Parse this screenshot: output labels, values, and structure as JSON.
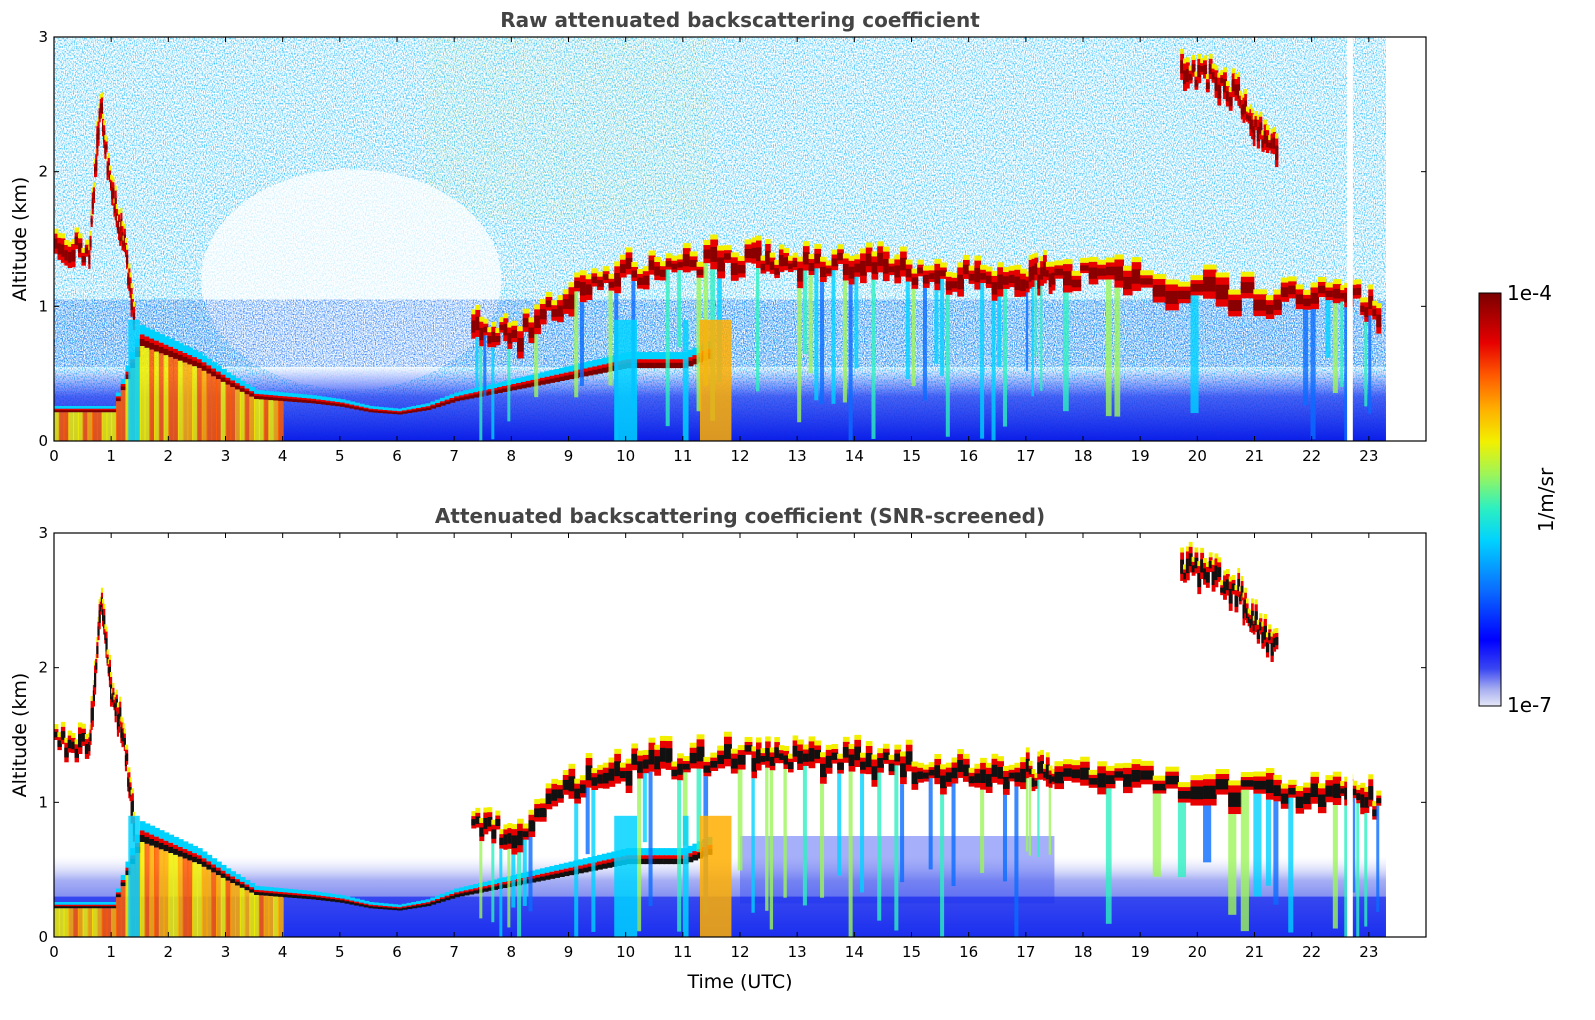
{
  "chart_data": [
    {
      "type": "heatmap",
      "title": "Raw attenuated backscattering coefficient",
      "ylabel": "Altitude (km)",
      "xlabel": "",
      "xlim": [
        0,
        24
      ],
      "ylim": [
        0,
        3
      ],
      "x_ticks": [
        "0",
        "1",
        "2",
        "3",
        "4",
        "5",
        "6",
        "7",
        "8",
        "9",
        "10",
        "11",
        "12",
        "13",
        "14",
        "15",
        "16",
        "17",
        "18",
        "19",
        "20",
        "21",
        "22",
        "23"
      ],
      "y_ticks": [
        "0",
        "1",
        "2",
        "3"
      ],
      "data_end_time": 23.3,
      "gap": [
        22.62,
        22.72
      ],
      "layers": [
        {
          "name": "boundary layer aerosol",
          "x": [
            0,
            0.5,
            1,
            1.5,
            2,
            2.5,
            3,
            3.5,
            4,
            4.5,
            5,
            5.5,
            6,
            6.5,
            7,
            7.5,
            8,
            8.5,
            9,
            9.5,
            10,
            10.5,
            11,
            11.5
          ],
          "y": [
            0.2,
            0.2,
            0.2,
            0.8,
            0.7,
            0.6,
            0.45,
            0.32,
            0.3,
            0.28,
            0.25,
            0.2,
            0.18,
            0.22,
            0.3,
            0.35,
            0.4,
            0.45,
            0.5,
            0.55,
            0.6,
            0.6,
            0.6,
            0.7
          ]
        },
        {
          "name": "low cloud",
          "x": [
            0,
            0.6,
            0.8,
            1.0,
            1.2,
            1.4
          ],
          "y": [
            1.45,
            1.4,
            2.5,
            1.8,
            1.5,
            0.8
          ]
        },
        {
          "name": "mid cloud",
          "x": [
            7.3,
            8,
            9,
            10,
            11,
            12.2,
            13,
            14,
            15,
            16,
            17,
            17.5,
            19,
            21.2,
            22.5,
            23.2
          ],
          "y": [
            0.85,
            0.75,
            1.1,
            1.25,
            1.3,
            1.35,
            1.3,
            1.3,
            1.25,
            1.2,
            1.2,
            1.25,
            1.15,
            1.05,
            1.1,
            0.95
          ]
        },
        {
          "name": "high cloud",
          "x": [
            19.7,
            20.2,
            20.7,
            21.0,
            21.4
          ],
          "y": [
            2.75,
            2.7,
            2.55,
            2.3,
            2.15
          ]
        }
      ]
    },
    {
      "type": "heatmap",
      "title": "Attenuated backscattering coefficient (SNR-screened)",
      "ylabel": "Altitude (km)",
      "xlabel": "Time (UTC)",
      "xlim": [
        0,
        24
      ],
      "ylim": [
        0,
        3
      ],
      "x_ticks": [
        "0",
        "1",
        "2",
        "3",
        "4",
        "5",
        "6",
        "7",
        "8",
        "9",
        "10",
        "11",
        "12",
        "13",
        "14",
        "15",
        "16",
        "17",
        "18",
        "19",
        "20",
        "21",
        "22",
        "23"
      ],
      "y_ticks": [
        "0",
        "1",
        "2",
        "3"
      ],
      "data_end_time": 23.3,
      "gap": [
        22.62,
        22.72
      ]
    }
  ],
  "colorbar": {
    "label": "1/m/sr",
    "max_label": "1e-4",
    "min_label": "1e-7",
    "scale": "log",
    "colormap": "jet"
  }
}
